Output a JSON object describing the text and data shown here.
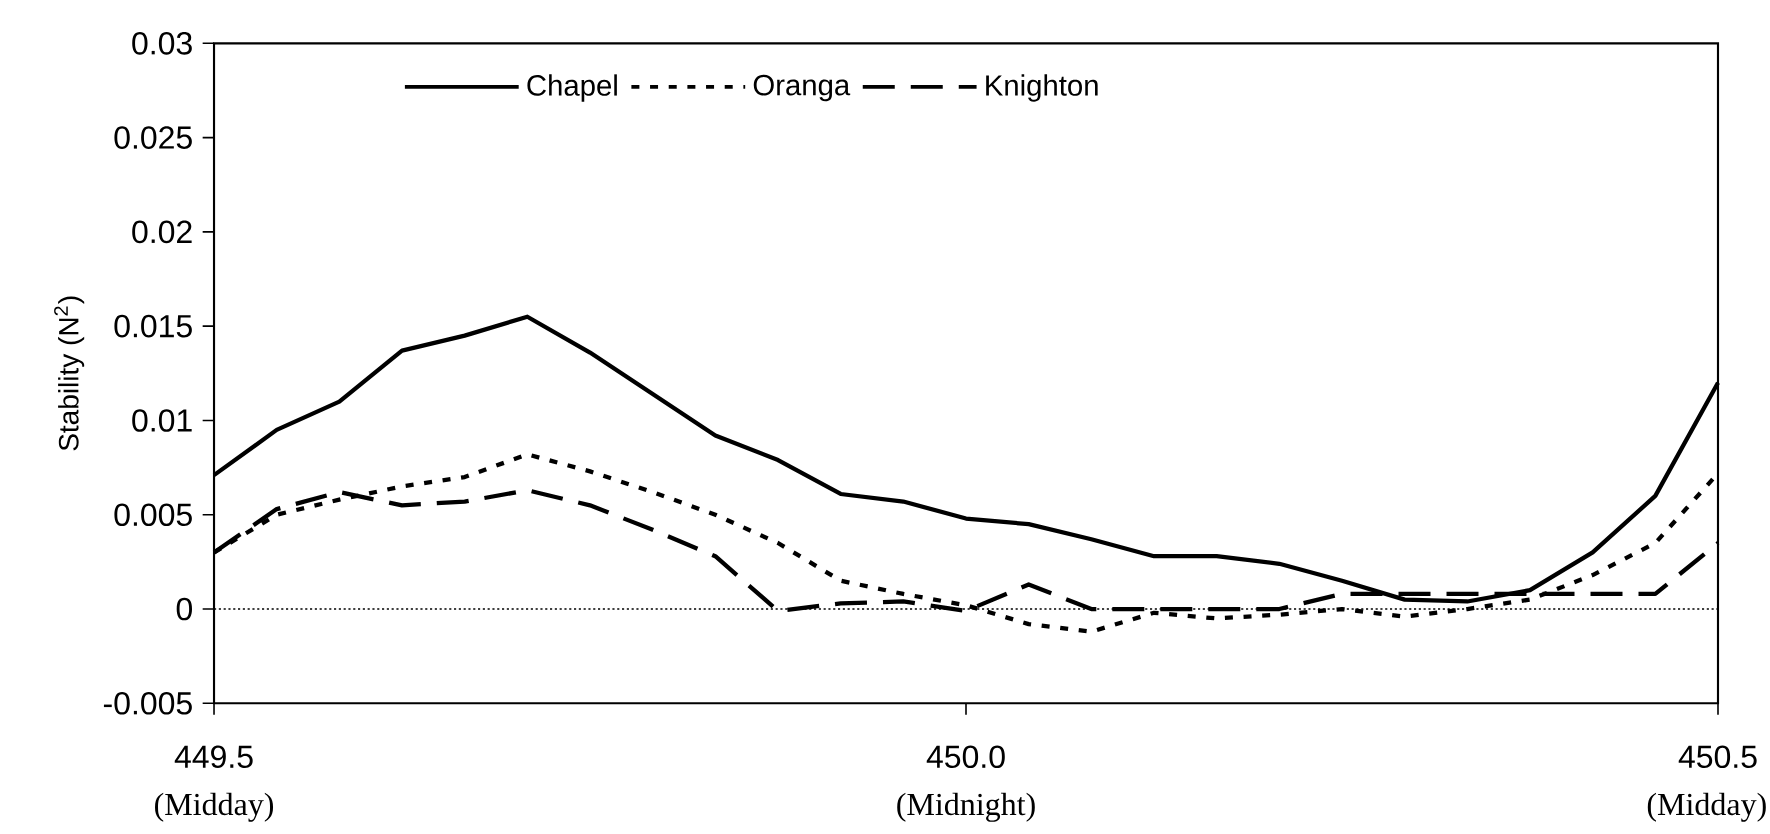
{
  "chart_data": {
    "type": "line",
    "ylabel": "Stability (N$^{2}$)",
    "x": [
      449.5,
      449.54167,
      449.58333,
      449.625,
      449.66667,
      449.70833,
      449.75,
      449.79167,
      449.83333,
      449.875,
      449.91667,
      449.95833,
      450.0,
      450.04167,
      450.08333,
      450.125,
      450.16667,
      450.20833,
      450.25,
      450.29167,
      450.33333,
      450.375,
      450.41667,
      450.45833,
      450.5
    ],
    "series": [
      {
        "name": "Chapel",
        "color": "#000000",
        "line_style": "solid",
        "values": [
          0.0071,
          0.0095,
          0.011,
          0.0137,
          0.0145,
          0.0155,
          0.0136,
          0.0114,
          0.0092,
          0.0079,
          0.0061,
          0.0057,
          0.0048,
          0.0045,
          0.0037,
          0.0028,
          0.0028,
          0.0024,
          0.0015,
          0.0005,
          0.0004,
          0.001,
          0.003,
          0.006,
          0.012
        ]
      },
      {
        "name": "Oranga",
        "color": "#000000",
        "line_style": "dotted",
        "values": [
          0.003,
          0.005,
          0.0058,
          0.0065,
          0.007,
          0.0082,
          0.0073,
          0.0062,
          0.005,
          0.0035,
          0.0015,
          0.0008,
          0.0002,
          -0.0008,
          -0.0012,
          -0.0002,
          -0.0005,
          -0.0003,
          0.0,
          -0.0004,
          0.0,
          0.0005,
          0.0018,
          0.0035,
          0.0072
        ]
      },
      {
        "name": "Knighton",
        "color": "#000000",
        "line_style": "dashed",
        "values": [
          0.003,
          0.0053,
          0.0062,
          0.0055,
          0.0057,
          0.0063,
          0.0055,
          0.0042,
          0.0028,
          -0.0001,
          0.0003,
          0.0004,
          -0.0001,
          0.0013,
          0.0,
          0.0,
          0.0,
          0.0,
          0.0008,
          0.0008,
          0.0008,
          0.0008,
          0.0008,
          0.0008,
          0.0035
        ]
      }
    ],
    "xlim": [
      449.5,
      450.5
    ],
    "xticks": [
      {
        "value": 449.5,
        "label": "449.5"
      },
      {
        "value": 450.0,
        "label": "450.0"
      },
      {
        "value": 450.5,
        "label": "450.5"
      }
    ],
    "ylim": [
      -0.005,
      0.03
    ],
    "yticks": [
      -0.005,
      0,
      0.005,
      0.01,
      0.015,
      0.02,
      0.025,
      0.03
    ],
    "ref_lines": [
      {
        "axis": "y",
        "value": 0,
        "line_style": "dotted"
      }
    ],
    "annotations": [
      "(Midday)",
      "(Midnight)",
      "(Midday)"
    ],
    "legend": "top",
    "grid": false,
    "marker": "none"
  }
}
